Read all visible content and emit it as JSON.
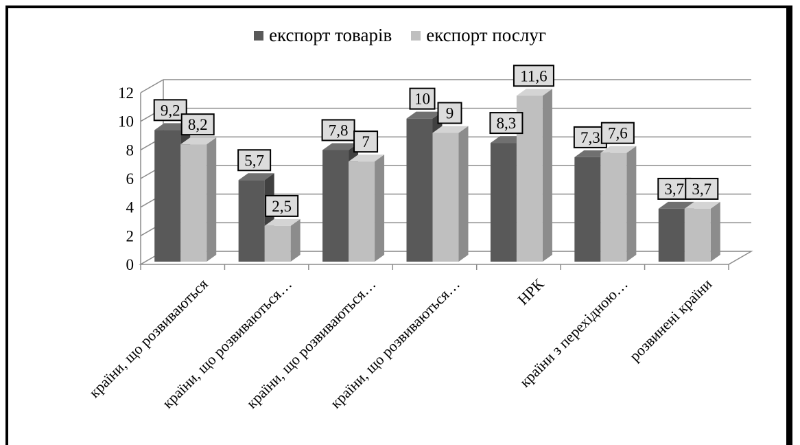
{
  "chart_data": {
    "type": "bar",
    "title": "",
    "xlabel": "",
    "ylabel": "",
    "ylim": [
      0,
      12
    ],
    "yticks": [
      0,
      2,
      4,
      6,
      8,
      10,
      12
    ],
    "grid": true,
    "legend_position": "top",
    "categories": [
      "країни, що розвиваються",
      "країни, що розвиваються…",
      "країни, що розвиваються…",
      "країни, що розвиваються…",
      "НРК",
      "країни з перехідною…",
      "розвинені країни"
    ],
    "series": [
      {
        "name": "експорт товарів",
        "values": [
          9.2,
          5.7,
          7.8,
          10,
          8.3,
          7.3,
          3.7
        ],
        "labels": [
          "9,2",
          "5,7",
          "7,8",
          "10",
          "8,3",
          "7,3",
          "3,7"
        ]
      },
      {
        "name": "експорт послуг",
        "values": [
          8.2,
          2.5,
          7,
          9,
          11.6,
          7.6,
          3.7
        ],
        "labels": [
          "8,2",
          "2,5",
          "7",
          "9",
          "11,6",
          "7,6",
          "3,7"
        ]
      }
    ]
  },
  "colors": {
    "goods": "#595959",
    "goods_top": "#707070",
    "goods_side": "#404040",
    "services": "#bfbfbf",
    "services_top": "#d4d4d4",
    "services_side": "#8c8c8c",
    "grid": "#8c8c8c",
    "label_bg": "#dcdcdc"
  }
}
